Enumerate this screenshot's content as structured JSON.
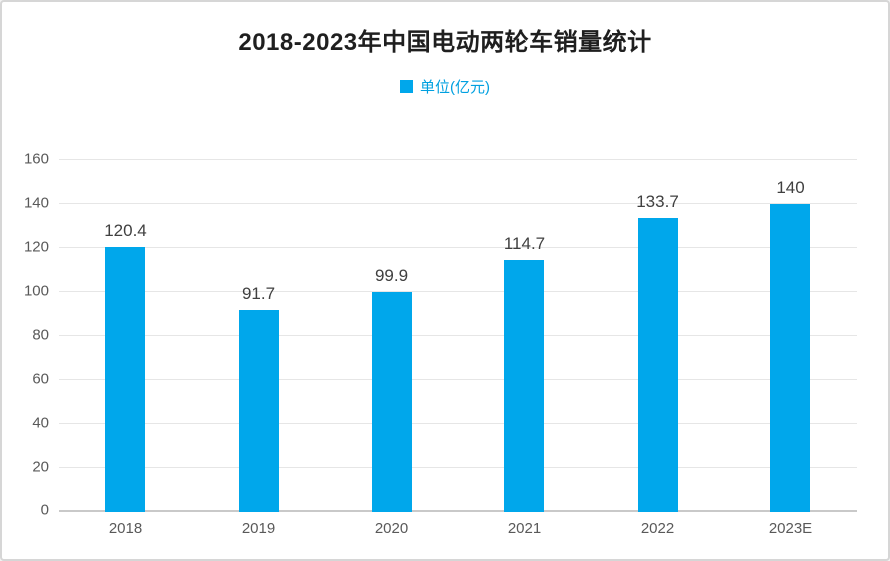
{
  "chart_data": {
    "type": "bar",
    "title": "2018-2023年中国电动两轮车销量统计",
    "legend": "单位(亿元)",
    "legend_position": "top",
    "categories": [
      "2018",
      "2019",
      "2020",
      "2021",
      "2022",
      "2023E"
    ],
    "values": [
      120.4,
      91.7,
      99.9,
      114.7,
      133.7,
      140
    ],
    "value_labels": [
      "120.4",
      "91.7",
      "99.9",
      "114.7",
      "133.7",
      "140"
    ],
    "xlabel": "",
    "ylabel": "",
    "ylim": [
      0,
      160
    ],
    "yticks": [
      0,
      20,
      40,
      60,
      80,
      100,
      120,
      140,
      160
    ],
    "grid": true,
    "colors": {
      "bar": "#00a7eb",
      "title_text": "#1f1f1f",
      "legend_text": "#00a0e0",
      "axis_text": "#595959",
      "gridline": "#e6e6e6",
      "axis_line": "#c9c9c9",
      "canvas_border": "#d6d6d6",
      "value_label_text": "#404040"
    }
  }
}
